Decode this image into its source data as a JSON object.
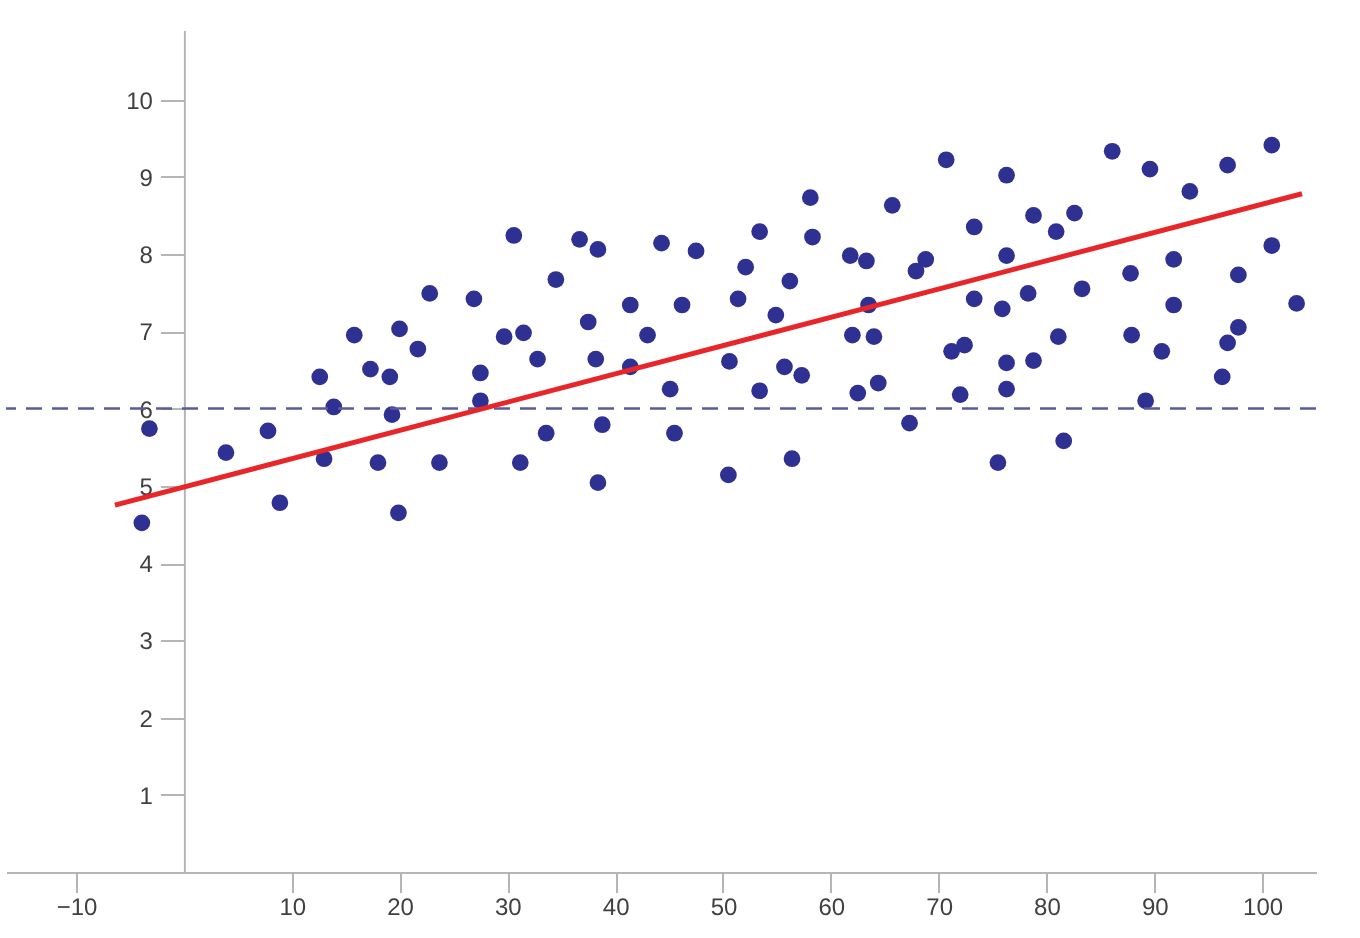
{
  "chart_data": {
    "type": "scatter",
    "xlim": [
      -16.5,
      105
    ],
    "ylim": [
      0,
      10.9
    ],
    "xticks": [
      -10,
      10,
      20,
      30,
      40,
      50,
      60,
      70,
      80,
      90,
      100
    ],
    "yticks": [
      1,
      2,
      3,
      4,
      5,
      6,
      7,
      8,
      9,
      10
    ],
    "grid": false,
    "ref_lines": [
      {
        "axis": "y",
        "value": 6,
        "color": "#5b5b9b",
        "line_style": "dashed"
      }
    ],
    "series": [
      {
        "marker": "circle",
        "color": "#2e3192",
        "x": [
          -3.9,
          -3.2,
          3.9,
          7.8,
          8.9,
          12.6,
          13.0,
          13.9,
          15.8,
          17.3,
          18.0,
          19.1,
          19.3,
          19.9,
          20.0,
          21.7,
          22.8,
          23.7,
          26.9,
          27.5,
          27.5,
          29.7,
          30.6,
          31.5,
          31.2,
          32.8,
          33.6,
          34.5,
          36.7,
          37.5,
          38.4,
          38.2,
          38.4,
          38.8,
          41.4,
          41.4,
          43.0,
          44.3,
          45.1,
          45.5,
          46.2,
          47.5,
          50.5,
          50.6,
          51.4,
          52.1,
          53.4,
          53.4,
          54.9,
          55.7,
          56.2,
          56.4,
          57.3,
          58.1,
          58.3,
          61.8,
          62.0,
          62.5,
          63.3,
          63.5,
          64.0,
          64.4,
          65.7,
          67.3,
          67.9,
          68.8,
          70.7,
          71.2,
          72.0,
          72.4,
          73.3,
          73.3,
          75.5,
          75.9,
          76.3,
          76.3,
          76.3,
          76.3,
          78.3,
          78.8,
          78.8,
          80.9,
          81.1,
          81.6,
          82.6,
          83.3,
          86.1,
          87.8,
          87.9,
          89.2,
          89.6,
          90.7,
          91.8,
          91.8,
          93.3,
          96.3,
          96.8,
          96.8,
          97.8,
          97.8,
          100.9,
          100.9,
          103.2
        ],
        "values": [
          4.52,
          5.74,
          5.43,
          5.71,
          4.78,
          6.41,
          5.35,
          6.02,
          6.95,
          6.51,
          5.3,
          6.41,
          5.92,
          4.65,
          7.03,
          6.77,
          7.49,
          5.3,
          7.42,
          6.46,
          6.1,
          6.93,
          8.24,
          6.98,
          5.3,
          6.64,
          5.68,
          7.67,
          8.19,
          7.12,
          8.06,
          6.64,
          5.04,
          5.79,
          7.34,
          6.54,
          6.95,
          8.14,
          6.25,
          5.68,
          7.34,
          8.04,
          5.14,
          6.61,
          7.42,
          7.83,
          8.29,
          6.23,
          7.21,
          6.54,
          7.65,
          5.35,
          6.43,
          8.73,
          8.22,
          7.98,
          6.95,
          6.2,
          7.91,
          7.34,
          6.93,
          6.33,
          8.63,
          5.81,
          7.78,
          7.93,
          9.22,
          6.74,
          6.18,
          6.82,
          8.35,
          7.42,
          5.3,
          7.29,
          9.02,
          7.98,
          6.59,
          6.25,
          7.49,
          8.5,
          6.62,
          8.29,
          6.93,
          5.58,
          8.53,
          7.55,
          9.33,
          7.75,
          6.95,
          6.1,
          9.1,
          6.74,
          7.93,
          7.34,
          8.81,
          6.41,
          9.15,
          6.85,
          7.73,
          7.05,
          9.41,
          8.11,
          7.36
        ]
      },
      {
        "type": "line",
        "color": "#e8262a",
        "x": [
          -6.4,
          103.7
        ],
        "values": [
          4.75,
          8.78
        ]
      }
    ]
  }
}
